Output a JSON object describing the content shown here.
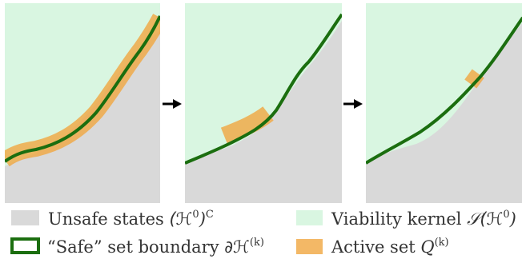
{
  "colors": {
    "unsafe": "#d9d9d9",
    "viability": "#d9f6e1",
    "safe_boundary": "#1b6e0f",
    "active_set": "#f0a640",
    "arrow": "#000000"
  },
  "panels": [
    {
      "step": 1,
      "active_region": "band-along-boundary"
    },
    {
      "step": 2,
      "active_region": "local-patch-mid"
    },
    {
      "step": 3,
      "active_region": "small-patch-upper"
    }
  ],
  "legend": {
    "unsafe": {
      "label": "Unsafe states",
      "math_base": "(ℋ",
      "math_sup": "0",
      "math_tail": ")",
      "math_sup2": "C"
    },
    "safe": {
      "label": "“Safe” set boundary",
      "math_base": "∂ℋ",
      "math_sup": "(k)"
    },
    "viability": {
      "label": "Viability kernel",
      "math_base": "𝒮(ℋ",
      "math_sup": "0",
      "math_tail": ")"
    },
    "active": {
      "label": "Active set",
      "math_base": "Q",
      "math_sup": "(k)"
    }
  }
}
